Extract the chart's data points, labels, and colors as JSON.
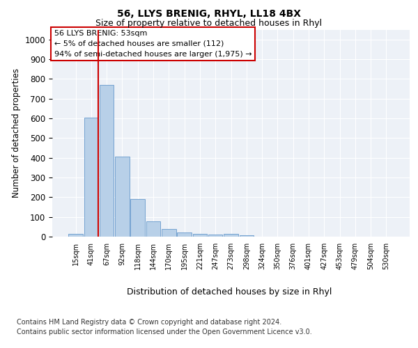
{
  "title1": "56, LLYS BRENIG, RHYL, LL18 4BX",
  "title2": "Size of property relative to detached houses in Rhyl",
  "xlabel": "Distribution of detached houses by size in Rhyl",
  "ylabel": "Number of detached properties",
  "categories": [
    "15sqm",
    "41sqm",
    "67sqm",
    "92sqm",
    "118sqm",
    "144sqm",
    "170sqm",
    "195sqm",
    "221sqm",
    "247sqm",
    "273sqm",
    "298sqm",
    "324sqm",
    "350sqm",
    "376sqm",
    "401sqm",
    "427sqm",
    "453sqm",
    "479sqm",
    "504sqm",
    "530sqm"
  ],
  "values": [
    15,
    605,
    770,
    405,
    190,
    78,
    40,
    20,
    15,
    10,
    15,
    8,
    0,
    0,
    0,
    0,
    0,
    0,
    0,
    0,
    0
  ],
  "bar_color": "#b8d0e8",
  "bar_edgecolor": "#6699cc",
  "vline_x": 1.45,
  "annotation_line1": "56 LLYS BRENIG: 53sqm",
  "annotation_line2": "← 5% of detached houses are smaller (112)",
  "annotation_line3": "94% of semi-detached houses are larger (1,975) →",
  "vline_color": "#cc0000",
  "ylim": [
    0,
    1050
  ],
  "yticks": [
    0,
    100,
    200,
    300,
    400,
    500,
    600,
    700,
    800,
    900,
    1000
  ],
  "footer1": "Contains HM Land Registry data © Crown copyright and database right 2024.",
  "footer2": "Contains public sector information licensed under the Open Government Licence v3.0.",
  "bg_color": "#edf1f7"
}
